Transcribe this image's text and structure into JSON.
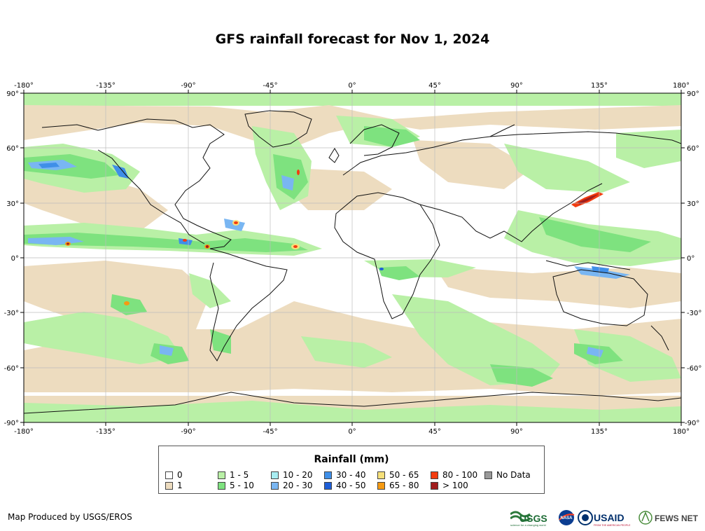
{
  "title": "GFS rainfall forecast for Nov 1, 2024",
  "axes": {
    "lon_labels": [
      "-180°",
      "-135°",
      "-90°",
      "-45°",
      "0°",
      "45°",
      "90°",
      "135°",
      "180°"
    ],
    "lat_labels": [
      "90°",
      "60°",
      "30°",
      "0°",
      "-30°",
      "-60°",
      "-90°"
    ]
  },
  "legend": {
    "title": "Rainfall (mm)",
    "items": [
      {
        "label": "0",
        "color": "#ffffff"
      },
      {
        "label": "1",
        "color": "#eddcbf"
      },
      {
        "label": "1 - 5",
        "color": "#b9f0a6"
      },
      {
        "label": "5 - 10",
        "color": "#7ee27f"
      },
      {
        "label": "10 - 20",
        "color": "#a8edf2"
      },
      {
        "label": "20 - 30",
        "color": "#79b6f2"
      },
      {
        "label": "30 - 40",
        "color": "#3f8fe8"
      },
      {
        "label": "40 - 50",
        "color": "#1e5fd8"
      },
      {
        "label": "50 - 65",
        "color": "#f6e07a"
      },
      {
        "label": "65 - 80",
        "color": "#f59a12"
      },
      {
        "label": "80 - 100",
        "color": "#f33c10"
      },
      {
        "label": "> 100",
        "color": "#a11d1d"
      },
      {
        "label": "No Data",
        "color": "#999999"
      }
    ]
  },
  "credit": "Map Produced by USGS/EROS",
  "logos": {
    "usgs": "USGS",
    "usgs_tagline": "science for a changing world",
    "nasa": "NASA",
    "usaid": "USAID",
    "usaid_tagline": "FROM THE AMERICAN PEOPLE",
    "fewsnet": "FEWS NET"
  }
}
